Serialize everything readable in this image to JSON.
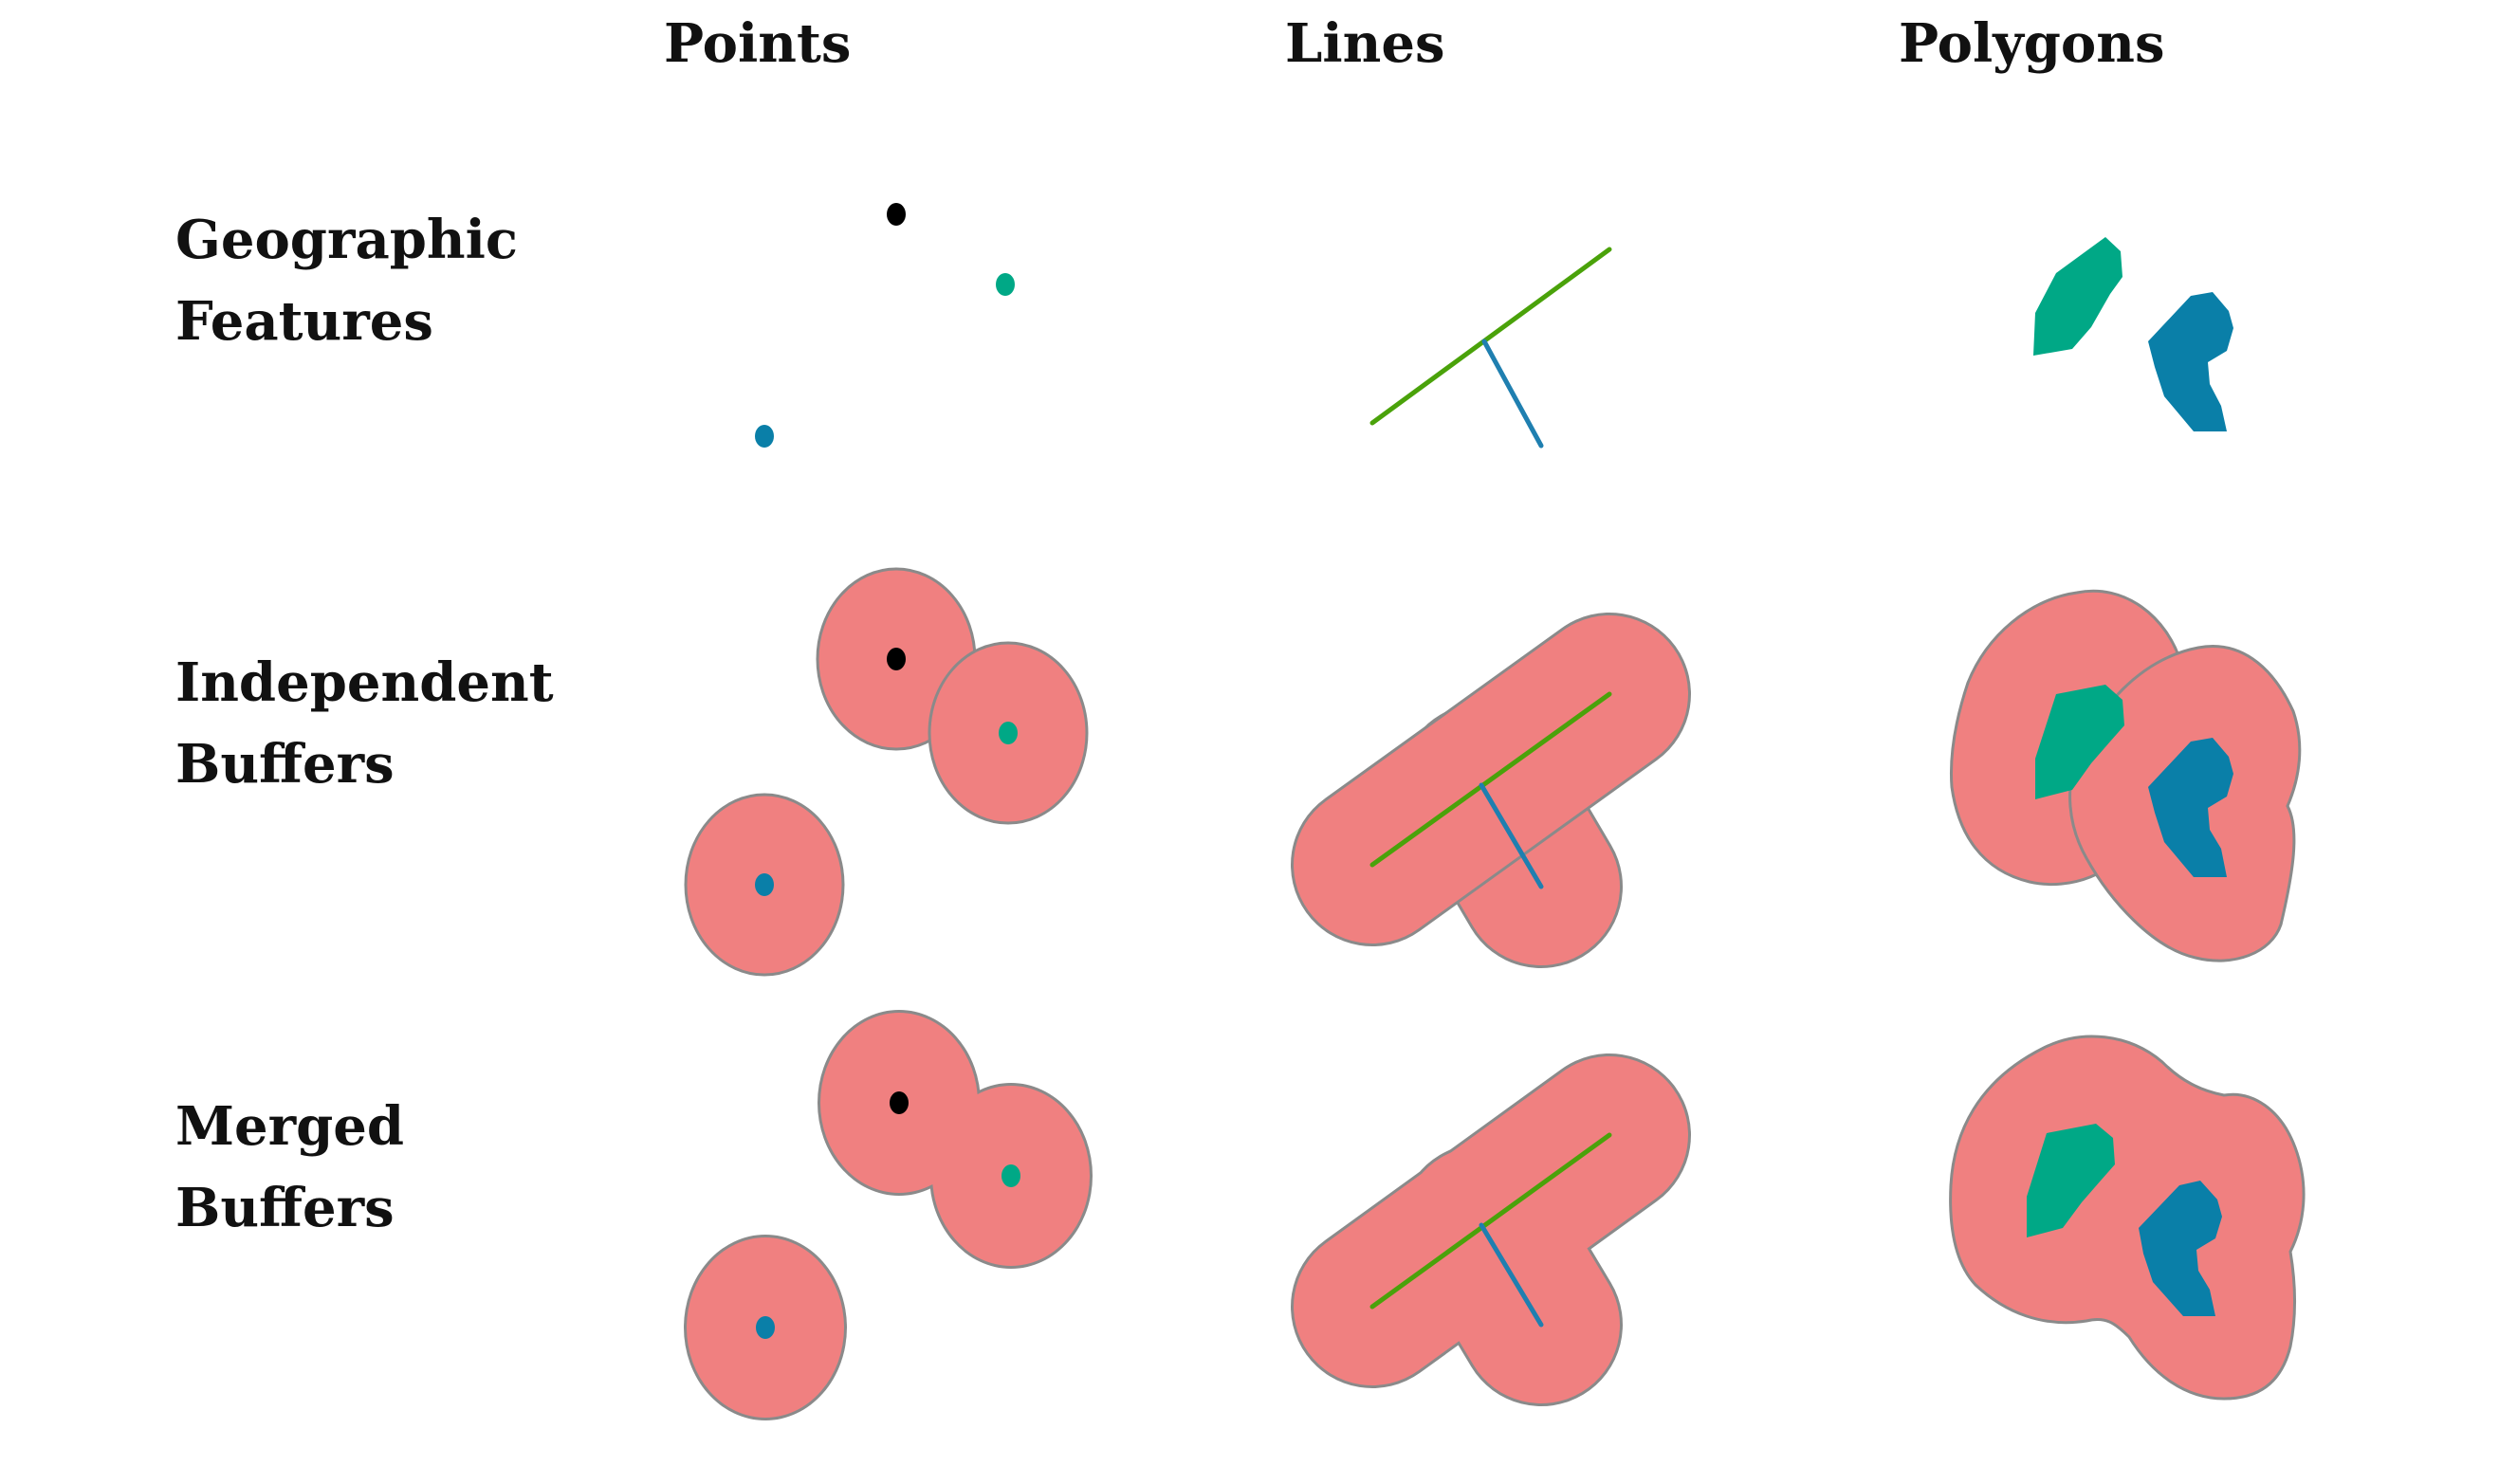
{
  "columns": [
    "Points",
    "Lines",
    "Polygons"
  ],
  "rows": [
    {
      "line1": "Geographic",
      "line2": "Features"
    },
    {
      "line1": "Independent",
      "line2": "Buffers"
    },
    {
      "line1": "Merged",
      "line2": "Buffers"
    }
  ],
  "colors": {
    "buffer_fill": "#f08080",
    "buffer_stroke": "#8a8a8a",
    "point_black": "#000000",
    "point_teal": "#00a886",
    "point_blue": "#0a7fa8",
    "line_green": "#4aa20a",
    "line_blue": "#1f7fb0",
    "polygon_teal": "#00a886",
    "polygon_blue": "#0a7fa8"
  }
}
